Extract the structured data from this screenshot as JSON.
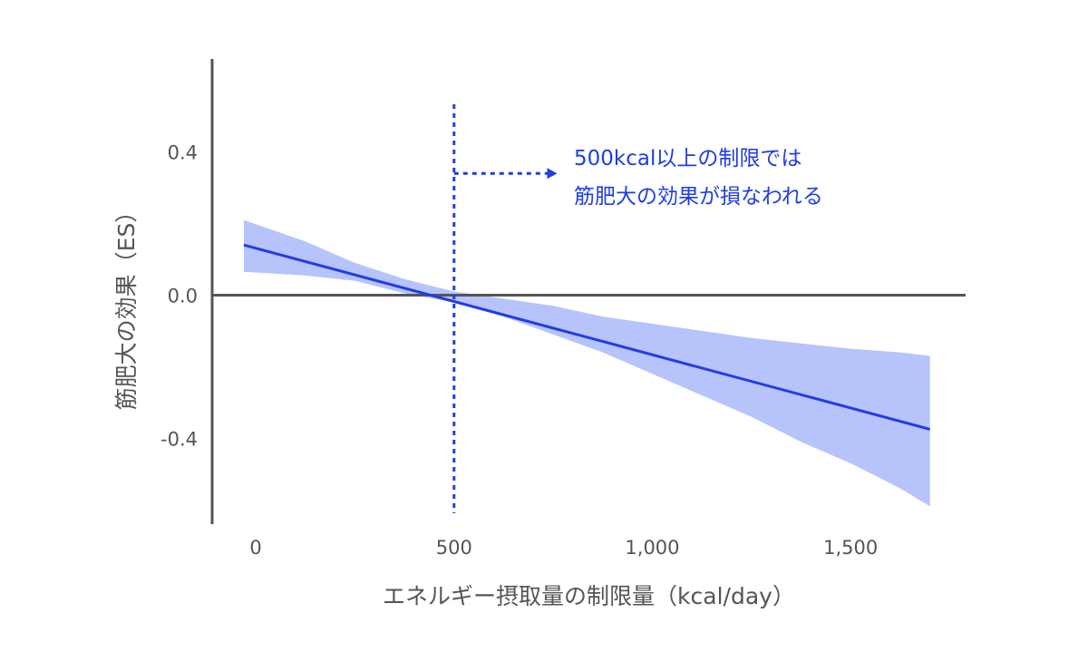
{
  "chart_data": {
    "type": "line",
    "xlabel": "エネルギー摂取量の制限量（kcal/day）",
    "ylabel": "筋肥大の効果（ES）",
    "xlim": [
      -110,
      1790
    ],
    "ylim": [
      -0.64,
      0.66
    ],
    "x_ticks": [
      0,
      500,
      1000,
      1500
    ],
    "x_tick_labels": [
      "0",
      "500",
      "1,000",
      "1,500"
    ],
    "y_ticks": [
      0.4,
      0.0,
      -0.4
    ],
    "y_tick_labels": [
      "0.4",
      "0.0",
      "-0.4"
    ],
    "grid": false,
    "zero_line": true,
    "series": [
      {
        "x": [
          -30,
          1700
        ],
        "y": [
          0.14,
          -0.375
        ],
        "color": "#1f3de6"
      }
    ],
    "confidence_band": {
      "x": [
        -30,
        125,
        250,
        375,
        500,
        625,
        750,
        875,
        1000,
        1125,
        1250,
        1375,
        1500,
        1625,
        1700
      ],
      "upper": [
        0.21,
        0.15,
        0.09,
        0.045,
        0.01,
        -0.01,
        -0.03,
        -0.06,
        -0.08,
        -0.1,
        -0.12,
        -0.135,
        -0.15,
        -0.16,
        -0.17
      ],
      "lower": [
        0.065,
        0.055,
        0.04,
        0.005,
        -0.02,
        -0.06,
        -0.11,
        -0.16,
        -0.22,
        -0.28,
        -0.34,
        -0.41,
        -0.47,
        -0.54,
        -0.59
      ],
      "color": "#b7c3fb"
    },
    "reference_line": {
      "x": 500,
      "style": "dotted",
      "color": "#1f3de6"
    },
    "annotation": {
      "lines": [
        "500kcal以上の制限では",
        "筋肥大の効果が損なわれる"
      ],
      "color": "#1f3de6",
      "arrow_from_x": 500,
      "arrow_to_x": 760,
      "arrow_y": 0.34
    }
  }
}
